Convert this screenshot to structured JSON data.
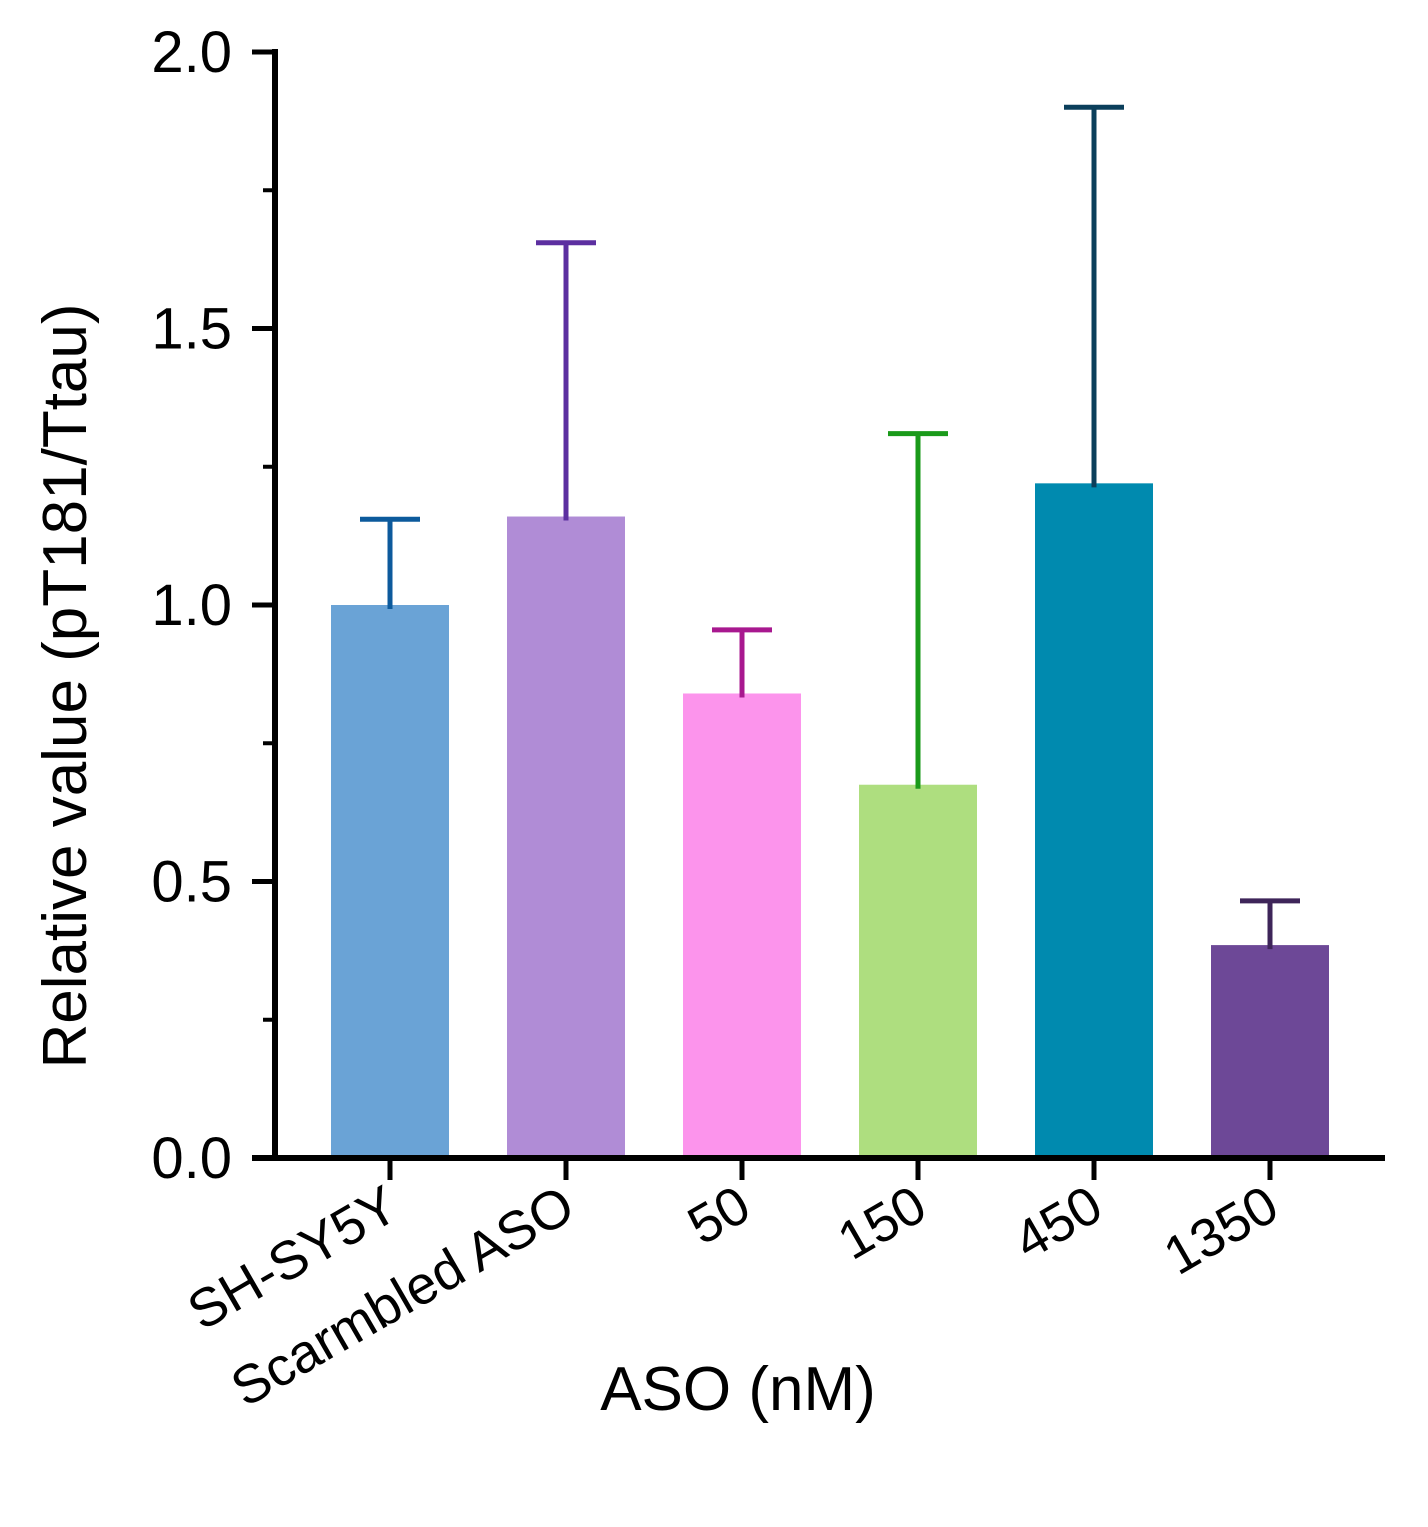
{
  "chart_data": {
    "type": "bar",
    "categories": [
      "SH-SY5Y",
      "Scarmbled ASO",
      "50",
      "150",
      "450",
      "1350"
    ],
    "values": [
      1.0,
      1.16,
      0.84,
      0.675,
      1.22,
      0.385
    ],
    "error_upper": [
      1.155,
      1.655,
      0.955,
      1.31,
      1.9,
      0.465
    ],
    "bar_colors": [
      "#6aa3d6",
      "#b08cd6",
      "#fc94ec",
      "#aede7f",
      "#008aaf",
      "#6d4897"
    ],
    "error_colors": [
      "#0c5a9c",
      "#5c2fa0",
      "#a8188f",
      "#1a9a1a",
      "#0b3f5b",
      "#3e2559"
    ],
    "xlabel": "ASO (nM)",
    "ylabel": "Relative value (pT181/Ttau)",
    "ylim": [
      0,
      2.0
    ],
    "yticks": [
      0.0,
      0.5,
      1.0,
      1.5,
      2.0
    ],
    "ytick_labels": [
      "0.0",
      "0.5",
      "1.0",
      "1.5",
      "2.0"
    ],
    "minor_yticks": [
      0.25,
      0.75,
      1.25,
      1.75
    ],
    "grid": false,
    "legend": "none"
  }
}
